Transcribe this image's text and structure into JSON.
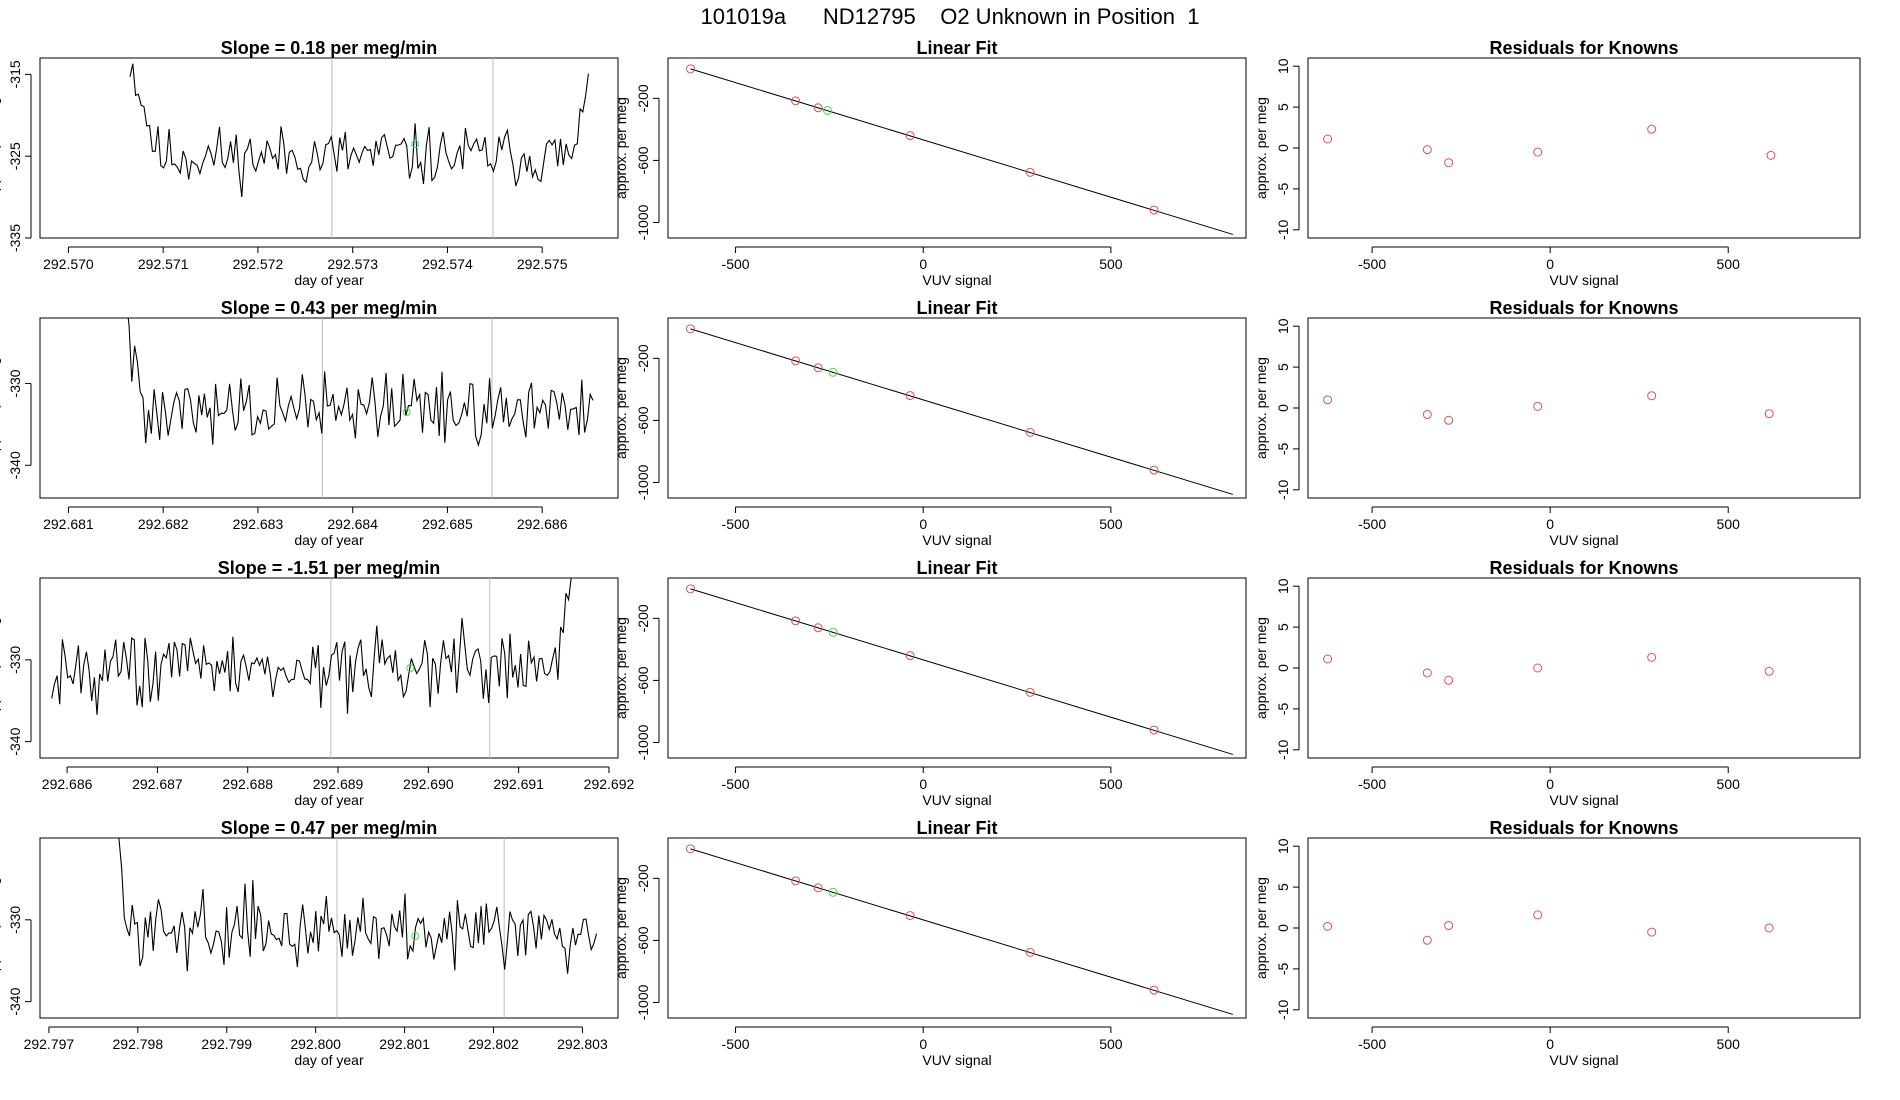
{
  "page": {
    "title": "101019a      ND12795    O2 Unknown in Position  1"
  },
  "colors": {
    "line": "#000000",
    "frame": "#000000",
    "known_point": "#e05050",
    "unknown_point": "#44dd44",
    "vline": "#bbbbbb"
  },
  "labels": {
    "ts_ylabel": "approx. per meg",
    "ts_xlabel": "day of year",
    "fit_title": "Linear Fit",
    "fit_ylabel": "approx. per meg",
    "fit_xlabel": "VUV signal",
    "res_title": "Residuals for Knowns",
    "res_ylabel": "approx. per meg",
    "res_xlabel": "VUV signal"
  },
  "chart_data": [
    {
      "type": "line",
      "row": 1,
      "title": "Slope =  0.18  per meg/min",
      "xlim": [
        292.5697,
        292.5758
      ],
      "ylim": [
        -335,
        -313
      ],
      "xticks": [
        292.57,
        292.571,
        292.572,
        292.573,
        292.574,
        292.575
      ],
      "yticks": [
        -335,
        -325,
        -315
      ],
      "xticklabels": [
        "292.570",
        "292.571",
        "292.572",
        "292.573",
        "292.574",
        "292.575"
      ],
      "yticklabels": [
        "-335",
        "-325",
        "-315"
      ],
      "x_start": 292.57065,
      "x_end": 292.57548,
      "step": 2.95e-05,
      "y_start": -313,
      "y_mid": -325,
      "y_end": -313,
      "noise": 2.6,
      "head": 10,
      "tail": 4,
      "seed": 11,
      "vlines": [
        292.57278,
        292.57448
      ],
      "unknown_marker": {
        "x": 292.57366,
        "y": -323.5
      }
    },
    {
      "type": "line",
      "row": 2,
      "title": "Slope =  0.43  per meg/min",
      "xlim": [
        292.6807,
        292.6868
      ],
      "ylim": [
        -344,
        -322
      ],
      "xticks": [
        292.681,
        292.682,
        292.683,
        292.684,
        292.685,
        292.686
      ],
      "yticks": [
        -340,
        -330
      ],
      "xticklabels": [
        "292.681",
        "292.682",
        "292.683",
        "292.684",
        "292.685",
        "292.686"
      ],
      "yticklabels": [
        "-340",
        "-330"
      ],
      "x_start": 292.68158,
      "x_end": 292.68655,
      "step": 2.95e-05,
      "y_start": -320,
      "y_mid": -333,
      "y_end": -330,
      "noise": 3.2,
      "head": 8,
      "tail": 0,
      "seed": 27,
      "vlines": [
        292.68368,
        292.68547
      ],
      "unknown_marker": {
        "x": 292.68457,
        "y": -333.5
      }
    },
    {
      "type": "line",
      "row": 3,
      "title": "Slope =  -1.51  per meg/min",
      "xlim": [
        292.6857,
        292.6921
      ],
      "ylim": [
        -342,
        -320
      ],
      "xticks": [
        292.686,
        292.687,
        292.688,
        292.689,
        292.69,
        292.691,
        292.692
      ],
      "yticks": [
        -340,
        -330
      ],
      "xticklabels": [
        "292.686",
        "292.687",
        "292.688",
        "292.689",
        "292.690",
        "292.691",
        "292.692"
      ],
      "yticklabels": [
        "-340",
        "-330"
      ],
      "x_start": 292.68583,
      "x_end": 292.69158,
      "step": 2.95e-05,
      "y_start": -334,
      "y_mid": -331,
      "y_end": -318,
      "noise": 3.3,
      "head": 0,
      "tail": 5,
      "seed": 43,
      "vlines": [
        292.68892,
        292.69068
      ],
      "unknown_marker": {
        "x": 292.6898,
        "y": -331
      }
    },
    {
      "type": "line",
      "row": 4,
      "title": "Slope =  0.47  per meg/min",
      "xlim": [
        292.7969,
        292.8034
      ],
      "ylim": [
        -342,
        -320
      ],
      "xticks": [
        292.797,
        292.798,
        292.799,
        292.8,
        292.801,
        292.802,
        292.803
      ],
      "yticks": [
        -340,
        -330
      ],
      "xticklabels": [
        "292.797",
        "292.798",
        "292.799",
        "292.800",
        "292.801",
        "292.802",
        "292.803"
      ],
      "yticklabels": [
        "-340",
        "-330"
      ],
      "x_start": 292.79773,
      "x_end": 292.80315,
      "step": 2.95e-05,
      "y_start": -318,
      "y_mid": -331,
      "y_end": -330,
      "noise": 3.0,
      "head": 6,
      "tail": 0,
      "seed": 59,
      "vlines": [
        292.80024,
        292.80212
      ],
      "unknown_marker": {
        "x": 292.80112,
        "y": -332
      }
    },
    {
      "type": "scatter",
      "row": 1,
      "title": "Linear Fit",
      "xlim": [
        -680,
        860
      ],
      "ylim": [
        -1100,
        60
      ],
      "xticks": [
        -500,
        0,
        500
      ],
      "yticks": [
        -200,
        -600,
        -1000
      ],
      "xticklabels": [
        "-500",
        "0",
        "500"
      ],
      "yticklabels": [
        "-200",
        "-600",
        "-1000"
      ],
      "fit_line": {
        "x": [
          -620,
          825
        ],
        "y": [
          -10,
          -1077
        ]
      },
      "known_points": {
        "x": [
          -620,
          -340,
          -280,
          -35,
          285,
          615
        ],
        "y": [
          -10,
          -216,
          -261,
          -440,
          -677,
          -920
        ]
      },
      "unknown_point": {
        "x": -255,
        "y": -278
      }
    },
    {
      "type": "scatter",
      "row": 2,
      "title": "Linear Fit",
      "xlim": [
        -680,
        860
      ],
      "ylim": [
        -1100,
        60
      ],
      "xticks": [
        -500,
        0,
        500
      ],
      "yticks": [
        -200,
        -600,
        -1000
      ],
      "xticklabels": [
        "-500",
        "0",
        "500"
      ],
      "yticklabels": [
        "-200",
        "-600",
        "-1000"
      ],
      "fit_line": {
        "x": [
          -620,
          825
        ],
        "y": [
          -10,
          -1077
        ]
      },
      "known_points": {
        "x": [
          -620,
          -340,
          -280,
          -35,
          285,
          615
        ],
        "y": [
          -10,
          -216,
          -261,
          -440,
          -677,
          -920
        ]
      },
      "unknown_point": {
        "x": -240,
        "y": -290
      }
    },
    {
      "type": "scatter",
      "row": 3,
      "title": "Linear Fit",
      "xlim": [
        -680,
        860
      ],
      "ylim": [
        -1100,
        60
      ],
      "xticks": [
        -500,
        0,
        500
      ],
      "yticks": [
        -200,
        -600,
        -1000
      ],
      "xticklabels": [
        "-500",
        "0",
        "500"
      ],
      "yticklabels": [
        "-200",
        "-600",
        "-1000"
      ],
      "fit_line": {
        "x": [
          -620,
          825
        ],
        "y": [
          -10,
          -1077
        ]
      },
      "known_points": {
        "x": [
          -620,
          -340,
          -280,
          -35,
          285,
          615
        ],
        "y": [
          -10,
          -216,
          -261,
          -440,
          -677,
          -920
        ]
      },
      "unknown_point": {
        "x": -240,
        "y": -290
      }
    },
    {
      "type": "scatter",
      "row": 4,
      "title": "Linear Fit",
      "xlim": [
        -680,
        860
      ],
      "ylim": [
        -1100,
        60
      ],
      "xticks": [
        -500,
        0,
        500
      ],
      "yticks": [
        -200,
        -600,
        -1000
      ],
      "xticklabels": [
        "-500",
        "0",
        "500"
      ],
      "yticklabels": [
        "-200",
        "-600",
        "-1000"
      ],
      "fit_line": {
        "x": [
          -620,
          825
        ],
        "y": [
          -10,
          -1077
        ]
      },
      "known_points": {
        "x": [
          -620,
          -340,
          -280,
          -35,
          285,
          615
        ],
        "y": [
          -10,
          -216,
          -261,
          -440,
          -677,
          -920
        ]
      },
      "unknown_point": {
        "x": -240,
        "y": -290
      }
    },
    {
      "type": "scatter",
      "row": 1,
      "title": "Residuals for Knowns",
      "xlim": [
        -680,
        870
      ],
      "ylim": [
        -11,
        11
      ],
      "xticks": [
        -500,
        0,
        500
      ],
      "yticks": [
        -10,
        -5,
        0,
        5,
        10
      ],
      "xticklabels": [
        "-500",
        "0",
        "500"
      ],
      "yticklabels": [
        "-10",
        "-5",
        "0",
        "5",
        "10"
      ],
      "points": {
        "x": [
          -625,
          -345,
          -285,
          -35,
          285,
          620
        ],
        "y": [
          1.1,
          -0.2,
          -1.8,
          -0.5,
          2.3,
          -0.9
        ]
      }
    },
    {
      "type": "scatter",
      "row": 2,
      "title": "Residuals for Knowns",
      "xlim": [
        -680,
        870
      ],
      "ylim": [
        -11,
        11
      ],
      "xticks": [
        -500,
        0,
        500
      ],
      "yticks": [
        -10,
        -5,
        0,
        5,
        10
      ],
      "xticklabels": [
        "-500",
        "0",
        "500"
      ],
      "yticklabels": [
        "-10",
        "-5",
        "0",
        "5",
        "10"
      ],
      "points": {
        "x": [
          -625,
          -345,
          -285,
          -35,
          285,
          615
        ],
        "y": [
          1.0,
          -0.8,
          -1.5,
          0.2,
          1.5,
          -0.7
        ]
      }
    },
    {
      "type": "scatter",
      "row": 3,
      "title": "Residuals for Knowns",
      "xlim": [
        -680,
        870
      ],
      "ylim": [
        -11,
        11
      ],
      "xticks": [
        -500,
        0,
        500
      ],
      "yticks": [
        -10,
        -5,
        0,
        5,
        10
      ],
      "xticklabels": [
        "-500",
        "0",
        "500"
      ],
      "yticklabels": [
        "-10",
        "-5",
        "0",
        "5",
        "10"
      ],
      "points": {
        "x": [
          -625,
          -345,
          -285,
          -35,
          285,
          615
        ],
        "y": [
          1.1,
          -0.6,
          -1.5,
          0.0,
          1.3,
          -0.4
        ]
      }
    },
    {
      "type": "scatter",
      "row": 4,
      "title": "Residuals for Knowns",
      "xlim": [
        -680,
        870
      ],
      "ylim": [
        -11,
        11
      ],
      "xticks": [
        -500,
        0,
        500
      ],
      "yticks": [
        -10,
        -5,
        0,
        5,
        10
      ],
      "xticklabels": [
        "-500",
        "0",
        "500"
      ],
      "yticklabels": [
        "-10",
        "-5",
        "0",
        "5",
        "10"
      ],
      "points": {
        "x": [
          -625,
          -345,
          -285,
          -35,
          285,
          615
        ],
        "y": [
          0.2,
          -1.5,
          0.3,
          1.6,
          -0.5,
          0.0
        ]
      }
    }
  ]
}
